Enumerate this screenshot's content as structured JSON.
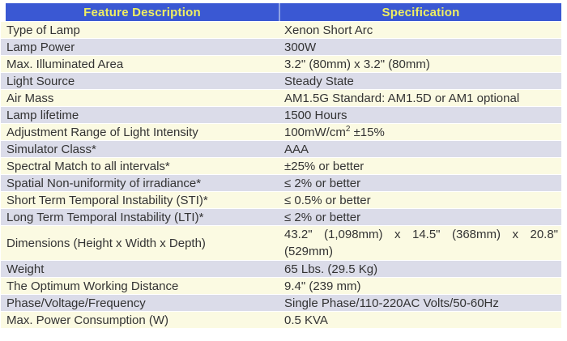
{
  "colors": {
    "header_bg": "#3a58d3",
    "header_text": "#efef62",
    "header_divider": "#8fa2e4",
    "row_cream": "#fbfae2",
    "row_lavender": "#dbdce9",
    "body_text": "#333333"
  },
  "table": {
    "headers": [
      "Feature Description",
      "Specification"
    ],
    "rows": [
      {
        "feature": "Type of Lamp",
        "spec": "Xenon Short Arc"
      },
      {
        "feature": "Lamp Power",
        "spec": "300W"
      },
      {
        "feature": "Max. Illuminated Area",
        "spec": "3.2\" (80mm) x 3.2\" (80mm)"
      },
      {
        "feature": "Light Source",
        "spec": "Steady State"
      },
      {
        "feature": "Air Mass",
        "spec": "AM1.5G Standard: AM1.5D or AM1 optional"
      },
      {
        "feature": "Lamp lifetime",
        "spec": "1500 Hours"
      },
      {
        "feature": "Adjustment Range of Light Intensity",
        "spec": "100mW/cm",
        "spec_sup": "2",
        "spec_after": " ±15%"
      },
      {
        "feature": "Simulator Class*",
        "spec": "AAA"
      },
      {
        "feature": "Spectral Match to all intervals*",
        "spec": "±25% or better"
      },
      {
        "feature": "Spatial Non-uniformity of irradiance*",
        "spec": "≤ 2% or better"
      },
      {
        "feature": "Short Term Temporal Instability (STI)*",
        "spec": "≤ 0.5% or better"
      },
      {
        "feature": "Long Term Temporal Instability (LTI)*",
        "spec": "≤ 2% or better"
      },
      {
        "feature": "Dimensions (Height x Width x Depth)",
        "spec": "43.2\" (1,098mm) x 14.5\" (368mm) x 20.8\"",
        "spec_line2": "(529mm)",
        "tall": true
      },
      {
        "feature": "Weight",
        "spec": "65 Lbs. (29.5 Kg)"
      },
      {
        "feature": "The Optimum Working Distance",
        "spec": "9.4\" (239 mm)"
      },
      {
        "feature": "Phase/Voltage/Frequency",
        "spec": "Single Phase/110-220AC Volts/50-60Hz"
      },
      {
        "feature": "Max. Power Consumption (W)",
        "spec": "0.5 KVA"
      }
    ]
  }
}
